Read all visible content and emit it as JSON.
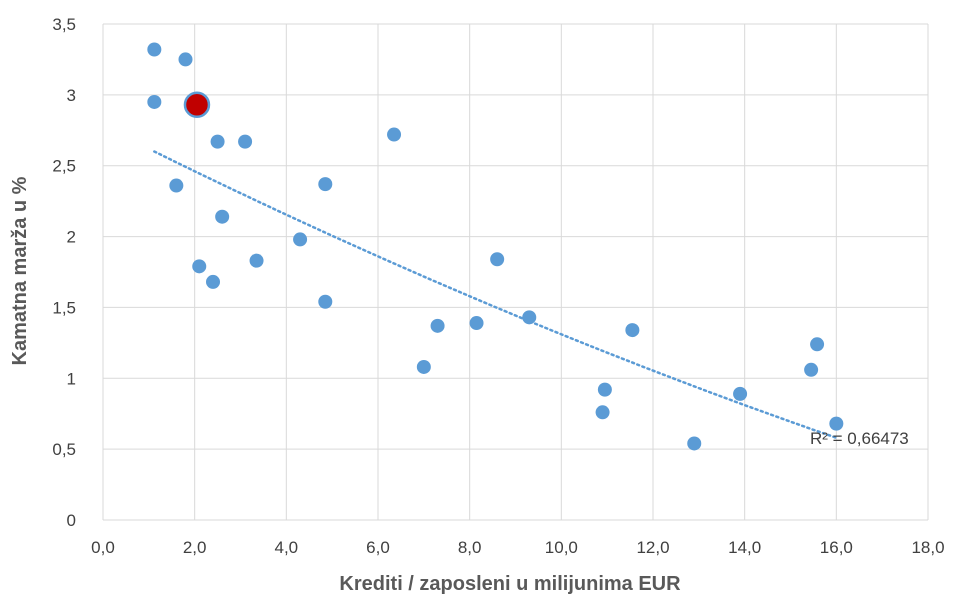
{
  "chart_data": {
    "type": "scatter",
    "xlabel": "Krediti / zaposleni u milijunima EUR",
    "ylabel": "Kamatna marža u %",
    "xlim": [
      0,
      18
    ],
    "ylim": [
      0,
      3.5
    ],
    "x_ticks": [
      "0,0",
      "2,0",
      "4,0",
      "6,0",
      "8,0",
      "10,0",
      "12,0",
      "14,0",
      "16,0",
      "18,0"
    ],
    "y_ticks": [
      "0",
      "0,5",
      "1",
      "1,5",
      "2",
      "2,5",
      "3",
      "3,5"
    ],
    "grid": true,
    "colors": {
      "points": "#5b9bd5",
      "highlight": "#c00000",
      "trendline": "#5b9bd5",
      "grid": "#d9d9d9"
    },
    "points": [
      [
        1.12,
        3.32
      ],
      [
        1.8,
        3.25
      ],
      [
        1.12,
        2.95
      ],
      [
        2.5,
        2.67
      ],
      [
        3.1,
        2.67
      ],
      [
        1.6,
        2.36
      ],
      [
        2.6,
        2.14
      ],
      [
        4.85,
        2.37
      ],
      [
        6.35,
        2.72
      ],
      [
        4.3,
        1.98
      ],
      [
        2.1,
        1.79
      ],
      [
        3.35,
        1.83
      ],
      [
        2.4,
        1.68
      ],
      [
        4.85,
        1.54
      ],
      [
        8.6,
        1.84
      ],
      [
        7.3,
        1.37
      ],
      [
        8.15,
        1.39
      ],
      [
        9.3,
        1.43
      ],
      [
        7.0,
        1.08
      ],
      [
        11.55,
        1.34
      ],
      [
        10.95,
        0.92
      ],
      [
        10.9,
        0.76
      ],
      [
        12.9,
        0.54
      ],
      [
        13.9,
        0.89
      ],
      [
        15.45,
        1.06
      ],
      [
        15.58,
        1.24
      ],
      [
        16.0,
        0.68
      ]
    ],
    "highlight": [
      2.05,
      2.93
    ],
    "trendline": {
      "type": "polynomial",
      "x_range": [
        1.12,
        16.0
      ],
      "start_y": 2.6,
      "end_y": 0.58
    },
    "annotations": {
      "r_squared": "R² = 0,66473"
    }
  }
}
